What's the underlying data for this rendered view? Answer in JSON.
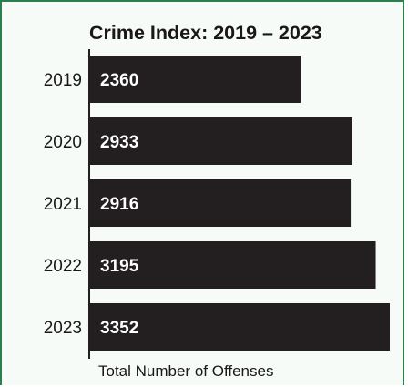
{
  "colors": {
    "bar": "#231f20",
    "bar_label": "#ffffff",
    "text": "#1a1718",
    "frame_border": "#2e7d4f"
  },
  "chart_data": {
    "type": "bar",
    "orientation": "horizontal",
    "title": "Crime Index: 2019 – 2023",
    "xlabel": "Total Number of Offenses",
    "ylabel": "",
    "categories": [
      "2019",
      "2020",
      "2021",
      "2022",
      "2023"
    ],
    "values": [
      2360,
      2933,
      2916,
      3195,
      3352
    ],
    "xlim": [
      0,
      3352
    ],
    "grid": false,
    "legend": "none",
    "data_labels": "inside-bar-start"
  }
}
